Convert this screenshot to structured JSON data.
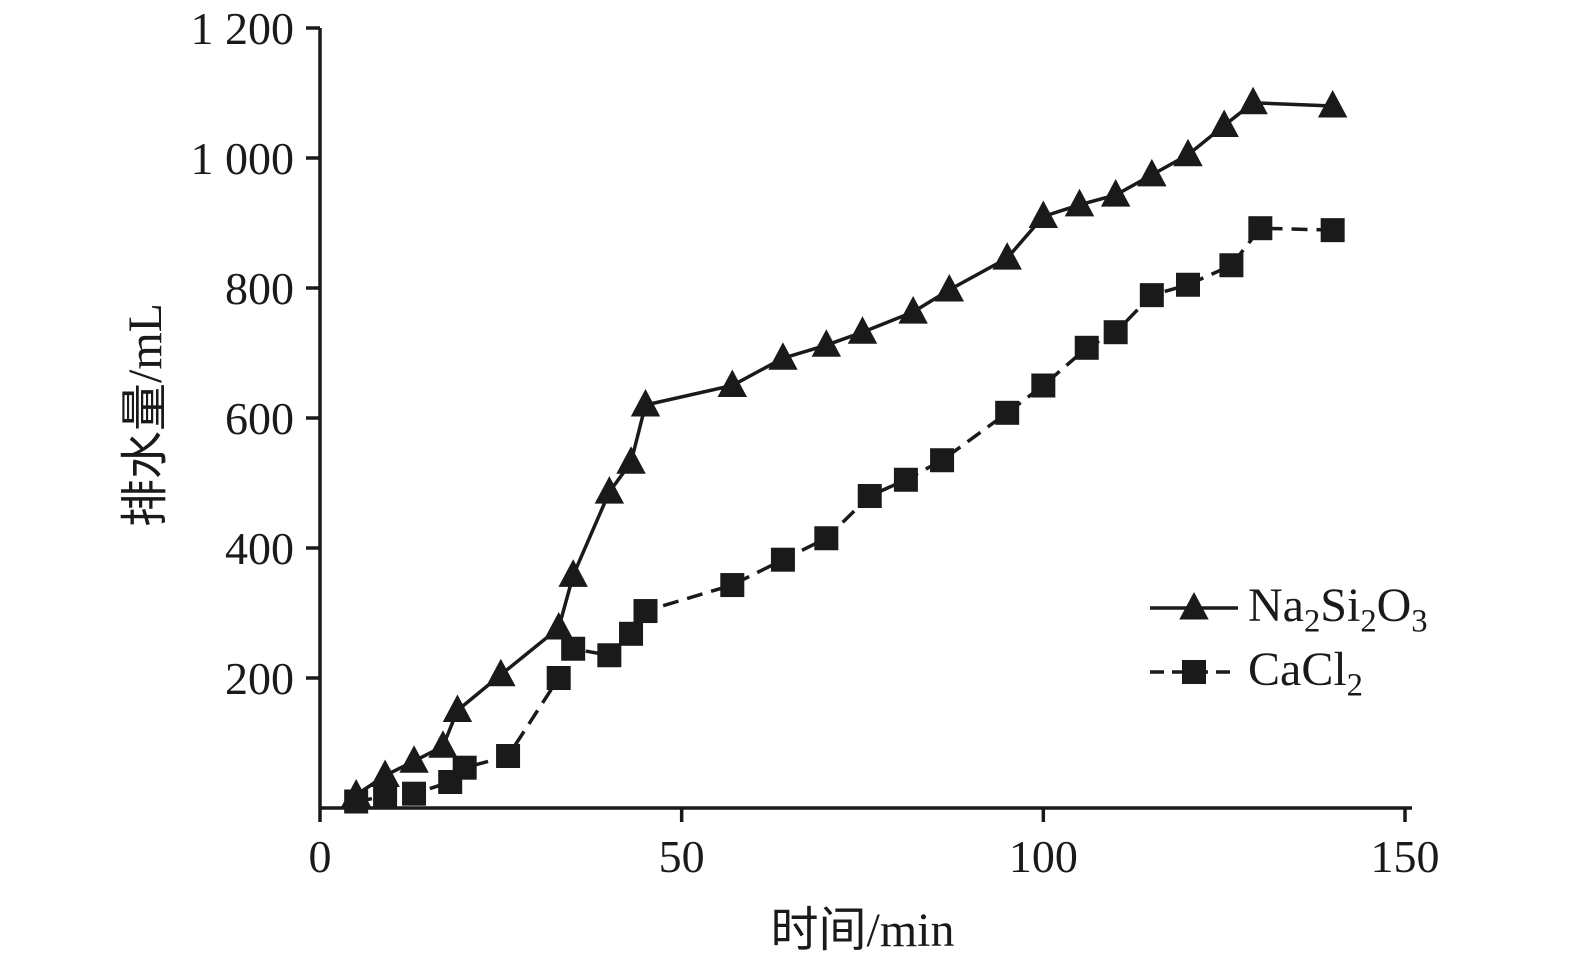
{
  "chart_data": {
    "type": "line",
    "title": "",
    "xlabel": "时间/min",
    "ylabel": "排水量/mL",
    "xlim": [
      0,
      150
    ],
    "ylim": [
      0,
      1200
    ],
    "x_ticks": [
      0,
      50,
      100,
      150
    ],
    "x_tick_labels": [
      "0",
      "50",
      "100",
      "150"
    ],
    "y_ticks": [
      200,
      400,
      600,
      800,
      1000,
      1200
    ],
    "y_tick_labels": [
      "200",
      "400",
      "600",
      "800",
      "1 000",
      "1 200"
    ],
    "grid": false,
    "legend_position": "inside-right",
    "axis_color": "#1a1a1a",
    "series": [
      {
        "name": "Na2Si2O3",
        "label_parts": [
          {
            "text": "Na"
          },
          {
            "text": "2",
            "sub": true
          },
          {
            "text": "Si"
          },
          {
            "text": "2",
            "sub": true
          },
          {
            "text": "O"
          },
          {
            "text": "3",
            "sub": true
          }
        ],
        "marker": "triangle",
        "line_style": "solid",
        "color": "#1a1a1a",
        "points": [
          [
            5,
            20
          ],
          [
            9,
            50
          ],
          [
            13,
            72
          ],
          [
            17,
            95
          ],
          [
            19,
            150
          ],
          [
            25,
            205
          ],
          [
            33,
            277
          ],
          [
            35,
            358
          ],
          [
            40,
            486
          ],
          [
            43,
            532
          ],
          [
            45,
            620
          ],
          [
            57,
            650
          ],
          [
            64,
            692
          ],
          [
            70,
            712
          ],
          [
            75,
            732
          ],
          [
            82,
            763
          ],
          [
            87,
            797
          ],
          [
            95,
            846
          ],
          [
            100,
            910
          ],
          [
            105,
            928
          ],
          [
            110,
            943
          ],
          [
            115,
            974
          ],
          [
            120,
            1005
          ],
          [
            125,
            1050
          ],
          [
            129,
            1085
          ],
          [
            140,
            1080
          ]
        ]
      },
      {
        "name": "CaCl2",
        "label_parts": [
          {
            "text": "CaCl"
          },
          {
            "text": "2",
            "sub": true
          }
        ],
        "marker": "square",
        "line_style": "dashed",
        "color": "#1a1a1a",
        "points": [
          [
            5,
            10
          ],
          [
            9,
            18
          ],
          [
            13,
            22
          ],
          [
            18,
            40
          ],
          [
            20,
            62
          ],
          [
            26,
            80
          ],
          [
            33,
            200
          ],
          [
            35,
            245
          ],
          [
            40,
            235
          ],
          [
            43,
            268
          ],
          [
            45,
            303
          ],
          [
            57,
            343
          ],
          [
            64,
            382
          ],
          [
            70,
            415
          ],
          [
            76,
            480
          ],
          [
            81,
            505
          ],
          [
            86,
            535
          ],
          [
            95,
            608
          ],
          [
            100,
            650
          ],
          [
            106,
            708
          ],
          [
            110,
            732
          ],
          [
            115,
            789
          ],
          [
            120,
            805
          ],
          [
            126,
            835
          ],
          [
            130,
            892
          ],
          [
            140,
            889
          ]
        ]
      }
    ]
  }
}
